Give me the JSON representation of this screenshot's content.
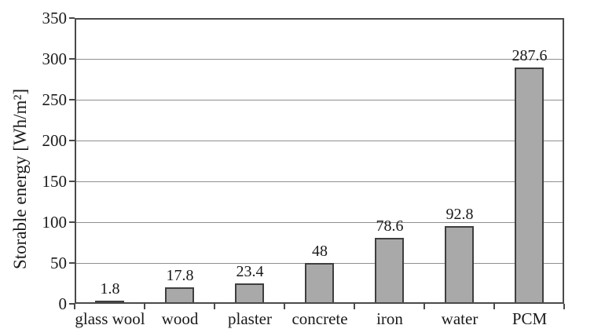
{
  "chart_data": {
    "type": "bar",
    "title": "",
    "xlabel": "",
    "ylabel": "Storable energy [Wh/m²]",
    "categories": [
      "glass wool",
      "wood",
      "plaster",
      "concrete",
      "iron",
      "water",
      "PCM"
    ],
    "values": [
      1.8,
      17.8,
      23.4,
      48,
      78.6,
      92.8,
      287.6
    ],
    "value_labels": [
      "1.8",
      "17.8",
      "23.4",
      "48",
      "78.6",
      "92.8",
      "287.6"
    ],
    "ylim": [
      0,
      350
    ],
    "yticks": [
      0,
      50,
      100,
      150,
      200,
      250,
      300,
      350
    ],
    "grid": true,
    "legend_position": "none",
    "bar_fill_color": "#a9a9a9",
    "bar_border_color": "#3f3f3f",
    "gridline_color": "#8f8f8f",
    "axis_color": "#4a4a4a",
    "text_color": "#1a1a1a",
    "background_color": "#ffffff"
  }
}
